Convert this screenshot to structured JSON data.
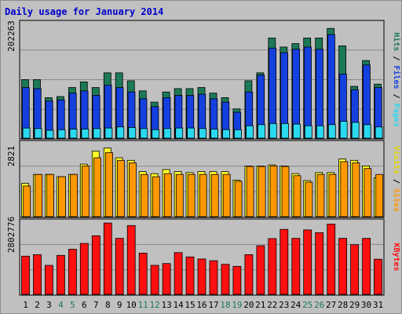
{
  "chart_data": {
    "type": "bar",
    "title": "Daily usage for January 2014",
    "categories": [
      "1",
      "2",
      "3",
      "4",
      "5",
      "6",
      "7",
      "8",
      "9",
      "10",
      "11",
      "12",
      "13",
      "14",
      "15",
      "16",
      "17",
      "18",
      "19",
      "20",
      "21",
      "22",
      "23",
      "24",
      "25",
      "26",
      "27",
      "28",
      "29",
      "30",
      "31"
    ],
    "weekend_categories": [
      "4",
      "5",
      "11",
      "12",
      "18",
      "19",
      "25",
      "26"
    ],
    "panels": [
      {
        "key": "hits",
        "ymax_label": "202263",
        "ymax": 202263,
        "series": [
          {
            "name": "Hits",
            "color": "#1b7a55",
            "values": [
              104000,
              104000,
              72000,
              74000,
              90000,
              100000,
              90000,
              116000,
              116000,
              102000,
              84000,
              64000,
              82000,
              88000,
              88000,
              90000,
              80000,
              72000,
              52000,
              102000,
              116000,
              178000,
              162000,
              168000,
              178000,
              178000,
              195000,
              164000,
              92000,
              138000,
              96000
            ]
          },
          {
            "name": "Files",
            "color": "#1540e0",
            "values": [
              90000,
              88000,
              66000,
              68000,
              80000,
              84000,
              76000,
              94000,
              90000,
              82000,
              70000,
              56000,
              72000,
              76000,
              76000,
              78000,
              70000,
              64000,
              46000,
              82000,
              112000,
              160000,
              152000,
              158000,
              162000,
              158000,
              184000,
              114000,
              86000,
              130000,
              90000
            ]
          },
          {
            "name": "Pages",
            "color": "#2ad8f0",
            "values": [
              18000,
              17000,
              14000,
              15000,
              16000,
              16000,
              17000,
              18000,
              20000,
              19000,
              17000,
              15000,
              17000,
              18000,
              18000,
              17000,
              16000,
              15000,
              15000,
              22000,
              24000,
              26000,
              26000,
              25000,
              22000,
              22000,
              24000,
              30000,
              28000,
              24000,
              20000
            ]
          }
        ]
      },
      {
        "key": "visits",
        "ymax_label": "2821",
        "ymax": 2821,
        "series": [
          {
            "name": "Visits",
            "color": "#ffff28",
            "values": [
              1300,
              1650,
              1650,
              1560,
              1650,
              2050,
              2560,
              2680,
              2300,
              2200,
              1760,
              1680,
              1840,
              1760,
              1720,
              1760,
              1760,
              1760,
              1430,
              1980,
              1980,
              2020,
              1980,
              1680,
              1410,
              1720,
              1720,
              2250,
              2200,
              1980,
              1520
            ]
          },
          {
            "name": "Sites",
            "color": "#ff9800",
            "values": [
              1200,
              1650,
              1650,
              1560,
              1650,
              1980,
              2300,
              2500,
              2200,
              2100,
              1650,
              1560,
              1680,
              1650,
              1650,
              1650,
              1650,
              1650,
              1380,
              1960,
              1960,
              1980,
              1960,
              1600,
              1350,
              1650,
              1650,
              2150,
              2100,
              1880,
              1650
            ]
          }
        ]
      },
      {
        "key": "kbytes",
        "ymax_label": "2802776",
        "ymax": 2802776,
        "series": [
          {
            "name": "KBytes",
            "color": "#ff1010",
            "values": [
              1500000,
              1560000,
              1140000,
              1530000,
              1770000,
              2000000,
              2300000,
              2800000,
              2200000,
              2700000,
              1620000,
              1140000,
              1210000,
              1640000,
              1470000,
              1390000,
              1320000,
              1180000,
              1100000,
              1560000,
              1910000,
              2190000,
              2550000,
              2200000,
              2530000,
              2420000,
              2760000,
              2200000,
              1950000,
              2200000,
              1380000
            ]
          }
        ]
      }
    ],
    "right_labels": {
      "hits": [
        {
          "text": "Hits",
          "color": "#1b7a55"
        },
        {
          "text": " / ",
          "color": "#000000"
        },
        {
          "text": "Files",
          "color": "#1540e0"
        },
        {
          "text": " / ",
          "color": "#000000"
        },
        {
          "text": "Pages",
          "color": "#2ad8f0"
        }
      ],
      "visits": [
        {
          "text": "Visits",
          "color": "#e8d800"
        },
        {
          "text": " / ",
          "color": "#000000"
        },
        {
          "text": "Sites",
          "color": "#ff9800"
        }
      ],
      "kbytes": [
        {
          "text": "KBytes",
          "color": "#ff1010"
        }
      ]
    },
    "colors": {
      "title": "#0000cc",
      "weekday_label": "#000000",
      "weekend_label": "#1b7a55",
      "panel_bg": "#c0c0c0",
      "gridline": "#8a8a8a"
    }
  }
}
